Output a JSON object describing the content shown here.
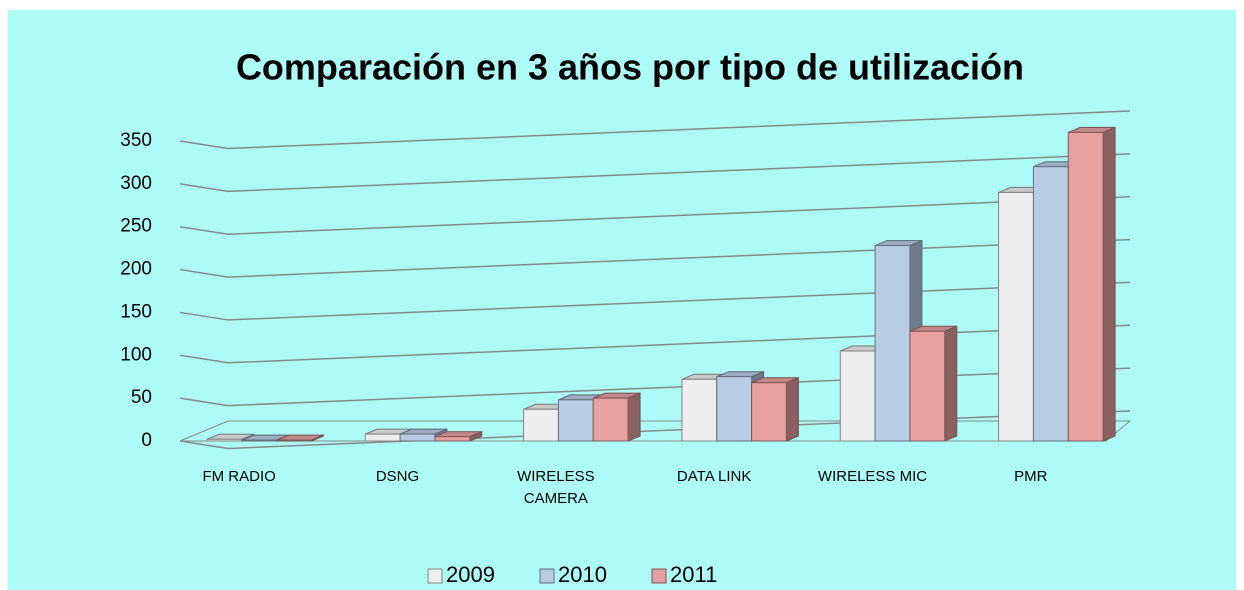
{
  "chart_data": {
    "type": "bar",
    "title": "Comparación en 3 años por tipo de utilización",
    "categories": [
      "FM RADIO",
      "DSNG",
      "WIRELESS CAMERA",
      "DATA LINK",
      "WIRELESS MIC",
      "PMR"
    ],
    "series": [
      {
        "name": "2009",
        "color": "#eeeeee",
        "values": [
          2,
          8,
          37,
          72,
          105,
          290
        ]
      },
      {
        "name": "2010",
        "color": "#b8cce4",
        "values": [
          1,
          8,
          48,
          75,
          228,
          320
        ]
      },
      {
        "name": "2011",
        "color": "#e6a0a0",
        "values": [
          1,
          5,
          50,
          68,
          128,
          360
        ]
      }
    ],
    "ylim": [
      0,
      350
    ],
    "yticks": [
      0,
      50,
      100,
      150,
      200,
      250,
      300,
      350
    ],
    "grid": true,
    "legend": "bottom"
  }
}
